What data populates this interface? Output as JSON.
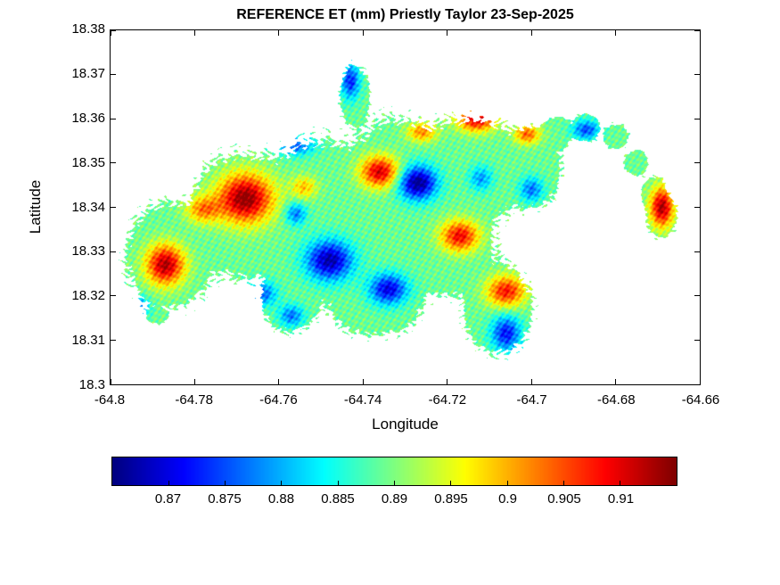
{
  "chart_data": {
    "type": "heatmap",
    "title": "REFERENCE ET (mm) Priestly Taylor 23-Sep-2025",
    "xlabel": "Longitude",
    "ylabel": "Latitude",
    "xlim": [
      -64.8,
      -64.66
    ],
    "ylim": [
      18.3,
      18.38
    ],
    "xticks": [
      -64.8,
      -64.78,
      -64.76,
      -64.74,
      -64.72,
      -64.7,
      -64.68,
      -64.66
    ],
    "xtick_labels": [
      "-64.8",
      "-64.78",
      "-64.76",
      "-64.74",
      "-64.72",
      "-64.7",
      "-64.68",
      "-64.66"
    ],
    "yticks": [
      18.3,
      18.31,
      18.32,
      18.33,
      18.34,
      18.35,
      18.36,
      18.37,
      18.38
    ],
    "ytick_labels": [
      "18.3",
      "18.31",
      "18.32",
      "18.33",
      "18.34",
      "18.35",
      "18.36",
      "18.37",
      "18.38"
    ],
    "grid": false,
    "legend": "none",
    "colormap": "jet",
    "clim": [
      0.865,
      0.915
    ],
    "contour_levels": 30,
    "nodata_color": "#ffffff",
    "colorbar": {
      "orientation": "horizontal",
      "ticks": [
        0.87,
        0.875,
        0.88,
        0.885,
        0.89,
        0.895,
        0.9,
        0.905,
        0.91
      ],
      "tick_labels": [
        "0.87",
        "0.875",
        "0.88",
        "0.885",
        "0.89",
        "0.895",
        "0.9",
        "0.905",
        "0.91"
      ]
    },
    "region_note": "Filled-contour reference ET field over an island landmass; white = no data",
    "value_base": 0.889,
    "texture_amp": 0.0024,
    "mask_ellipses": [
      [
        -64.786,
        18.329,
        0.01,
        0.012
      ],
      [
        -64.768,
        18.338,
        0.013,
        0.014
      ],
      [
        -64.75,
        18.338,
        0.013,
        0.017
      ],
      [
        -64.731,
        18.344,
        0.013,
        0.016
      ],
      [
        -64.714,
        18.348,
        0.012,
        0.012
      ],
      [
        -64.742,
        18.365,
        0.0035,
        0.007
      ],
      [
        -64.72,
        18.33,
        0.011,
        0.01
      ],
      [
        -64.737,
        18.32,
        0.011,
        0.009
      ],
      [
        -64.757,
        18.319,
        0.007,
        0.007
      ],
      [
        -64.708,
        18.317,
        0.008,
        0.01
      ],
      [
        -64.7,
        18.349,
        0.007,
        0.009
      ],
      [
        -64.694,
        18.357,
        0.004,
        0.0035
      ],
      [
        -64.687,
        18.358,
        0.0035,
        0.003
      ],
      [
        -64.68,
        18.356,
        0.003,
        0.0028
      ],
      [
        -64.675,
        18.35,
        0.0028,
        0.003
      ],
      [
        -64.671,
        18.343,
        0.003,
        0.004
      ],
      [
        -64.669,
        18.338,
        0.0035,
        0.005
      ],
      [
        -64.789,
        18.3155,
        0.0025,
        0.0018
      ]
    ],
    "value_bumps": [
      [
        -64.768,
        18.342,
        0.0065,
        0.0055,
        0.026
      ],
      [
        -64.787,
        18.327,
        0.0045,
        0.0045,
        0.024
      ],
      [
        -64.778,
        18.3395,
        0.004,
        0.003,
        0.013
      ],
      [
        -64.736,
        18.348,
        0.0045,
        0.0035,
        0.022
      ],
      [
        -64.713,
        18.36,
        0.0045,
        0.0028,
        0.022
      ],
      [
        -64.726,
        18.357,
        0.0035,
        0.0022,
        0.013
      ],
      [
        -64.701,
        18.3565,
        0.003,
        0.0022,
        0.015
      ],
      [
        -64.717,
        18.3335,
        0.0045,
        0.0035,
        0.02
      ],
      [
        -64.706,
        18.321,
        0.0045,
        0.0035,
        0.019
      ],
      [
        -64.698,
        18.3325,
        0.0035,
        0.0035,
        0.014
      ],
      [
        -64.669,
        18.34,
        0.0028,
        0.0045,
        0.024
      ],
      [
        -64.722,
        18.3125,
        0.0035,
        0.0025,
        0.012
      ],
      [
        -64.754,
        18.3445,
        0.003,
        0.0025,
        0.01
      ],
      [
        -64.727,
        18.3455,
        0.0045,
        0.0038,
        -0.024
      ],
      [
        -64.748,
        18.328,
        0.0055,
        0.0045,
        -0.022
      ],
      [
        -64.734,
        18.3215,
        0.0045,
        0.0035,
        -0.019
      ],
      [
        -64.756,
        18.3385,
        0.0025,
        0.0025,
        -0.012
      ],
      [
        -64.756,
        18.354,
        0.0045,
        0.0022,
        -0.013
      ],
      [
        -64.743,
        18.3685,
        0.0022,
        0.004,
        -0.016
      ],
      [
        -64.764,
        18.3205,
        0.0035,
        0.0028,
        -0.013
      ],
      [
        -64.706,
        18.3115,
        0.0035,
        0.004,
        -0.017
      ],
      [
        -64.7,
        18.344,
        0.0028,
        0.0028,
        -0.012
      ],
      [
        -64.687,
        18.3575,
        0.0032,
        0.0022,
        -0.014
      ],
      [
        -64.793,
        18.3175,
        0.0022,
        0.0022,
        -0.012
      ],
      [
        -64.712,
        18.3465,
        0.0028,
        0.0028,
        -0.01
      ],
      [
        -64.757,
        18.3155,
        0.003,
        0.0025,
        -0.012
      ]
    ]
  }
}
